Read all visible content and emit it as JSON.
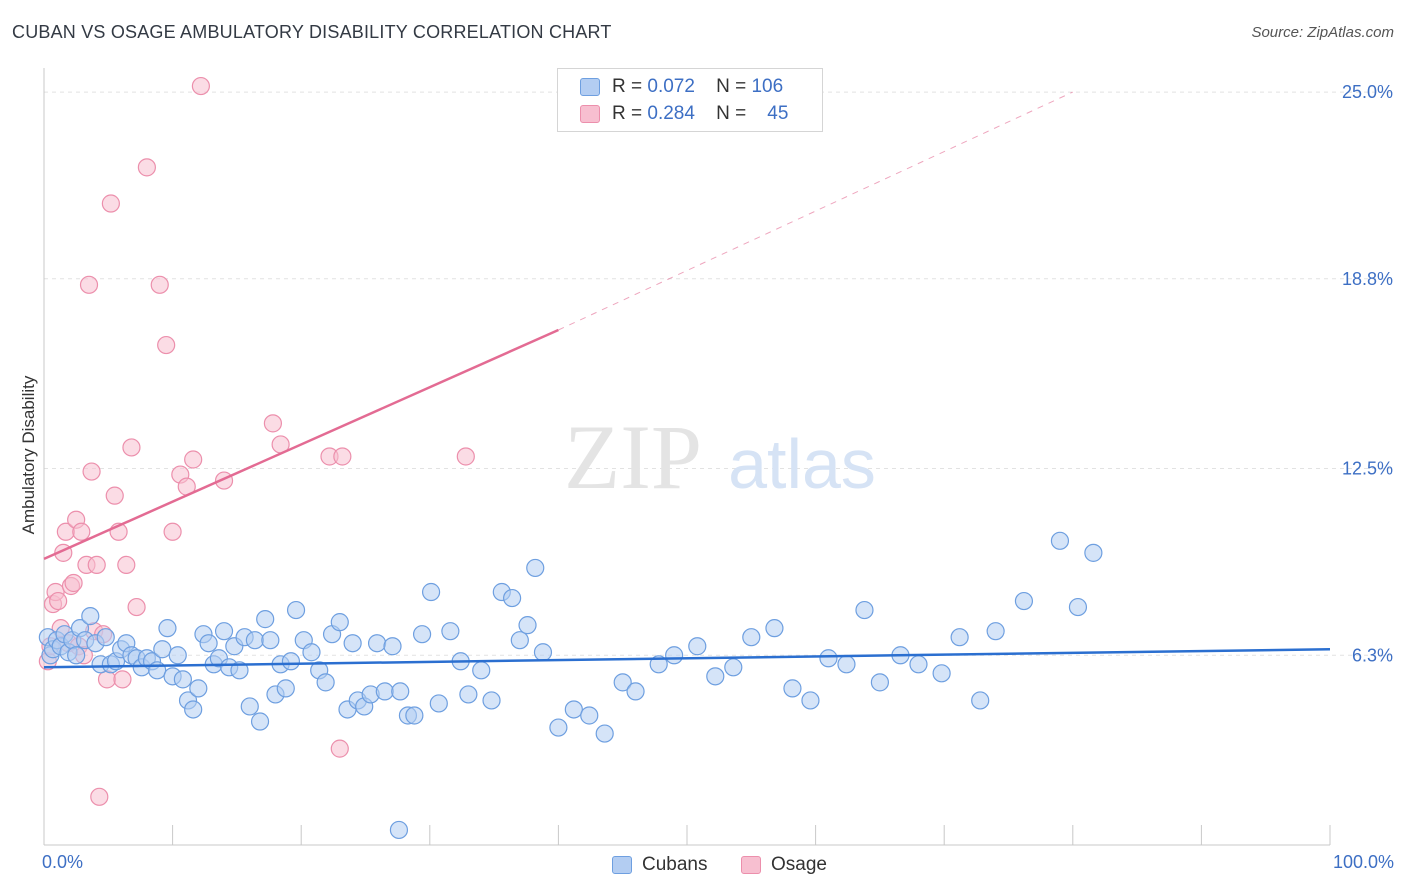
{
  "header": {
    "title": "CUBAN VS OSAGE AMBULATORY DISABILITY CORRELATION CHART",
    "source": "Source: ZipAtlas.com"
  },
  "watermark": {
    "zip": "ZIP",
    "atlas": "atlas"
  },
  "colors": {
    "cubans_fill": "#b3cdf2",
    "cubans_stroke": "#6e9fe0",
    "cubans_line": "#2b6fd0",
    "osage_fill": "#f7bfd0",
    "osage_stroke": "#ec8fac",
    "osage_line": "#e36b93",
    "axis_text": "#3d6fc4"
  },
  "legend": {
    "rows": [
      {
        "r_label": "R =",
        "r_value": "0.072",
        "n_label": "N =",
        "n_value": "106"
      },
      {
        "r_label": "R =",
        "r_value": "0.284",
        "n_label": "N =",
        "n_value": "45"
      }
    ]
  },
  "bottom_legend": {
    "cubans": "Cubans",
    "osage": "Osage"
  },
  "chart_data": {
    "type": "scatter",
    "title": "CUBAN VS OSAGE AMBULATORY DISABILITY CORRELATION CHART",
    "xlabel": "",
    "ylabel": "Ambulatory Disability",
    "xlim": [
      0,
      100
    ],
    "ylim": [
      0,
      25.6
    ],
    "x_tick_labels": [
      "0.0%",
      "100.0%"
    ],
    "y_ticks": [
      6.3,
      12.5,
      18.8,
      25.0
    ],
    "y_tick_labels": [
      "6.3%",
      "12.5%",
      "18.8%",
      "25.0%"
    ],
    "grid": true,
    "legend_placement": "top-center",
    "series": [
      {
        "name": "Cubans",
        "R": 0.072,
        "N": 106,
        "trend": {
          "x": [
            0,
            100
          ],
          "y": [
            5.9,
            6.5
          ]
        },
        "points": [
          [
            0.3,
            6.9
          ],
          [
            0.5,
            6.3
          ],
          [
            0.7,
            6.5
          ],
          [
            1.0,
            6.8
          ],
          [
            1.3,
            6.6
          ],
          [
            1.6,
            7.0
          ],
          [
            1.9,
            6.4
          ],
          [
            2.2,
            6.8
          ],
          [
            2.5,
            6.3
          ],
          [
            2.8,
            7.2
          ],
          [
            3.2,
            6.8
          ],
          [
            3.6,
            7.6
          ],
          [
            4.0,
            6.7
          ],
          [
            4.4,
            6.0
          ],
          [
            4.8,
            6.9
          ],
          [
            5.2,
            6.0
          ],
          [
            5.6,
            6.1
          ],
          [
            6.0,
            6.5
          ],
          [
            6.4,
            6.7
          ],
          [
            6.8,
            6.3
          ],
          [
            7.2,
            6.2
          ],
          [
            7.6,
            5.9
          ],
          [
            8.0,
            6.2
          ],
          [
            8.4,
            6.1
          ],
          [
            8.8,
            5.8
          ],
          [
            9.2,
            6.5
          ],
          [
            9.6,
            7.2
          ],
          [
            10.0,
            5.6
          ],
          [
            10.4,
            6.3
          ],
          [
            10.8,
            5.5
          ],
          [
            11.2,
            4.8
          ],
          [
            11.6,
            4.5
          ],
          [
            12.0,
            5.2
          ],
          [
            12.4,
            7.0
          ],
          [
            12.8,
            6.7
          ],
          [
            13.2,
            6.0
          ],
          [
            13.6,
            6.2
          ],
          [
            14.0,
            7.1
          ],
          [
            14.4,
            5.9
          ],
          [
            14.8,
            6.6
          ],
          [
            15.2,
            5.8
          ],
          [
            15.6,
            6.9
          ],
          [
            16.0,
            4.6
          ],
          [
            16.4,
            6.8
          ],
          [
            16.8,
            4.1
          ],
          [
            17.2,
            7.5
          ],
          [
            17.6,
            6.8
          ],
          [
            18.0,
            5.0
          ],
          [
            18.4,
            6.0
          ],
          [
            18.8,
            5.2
          ],
          [
            19.2,
            6.1
          ],
          [
            19.6,
            7.8
          ],
          [
            20.2,
            6.8
          ],
          [
            20.8,
            6.4
          ],
          [
            21.4,
            5.8
          ],
          [
            21.9,
            5.4
          ],
          [
            22.4,
            7.0
          ],
          [
            23.0,
            7.4
          ],
          [
            23.6,
            4.5
          ],
          [
            24.0,
            6.7
          ],
          [
            24.4,
            4.8
          ],
          [
            24.9,
            4.6
          ],
          [
            25.4,
            5.0
          ],
          [
            25.9,
            6.7
          ],
          [
            26.5,
            5.1
          ],
          [
            27.1,
            6.6
          ],
          [
            27.7,
            5.1
          ],
          [
            28.3,
            4.3
          ],
          [
            28.8,
            4.3
          ],
          [
            29.4,
            7.0
          ],
          [
            30.1,
            8.4
          ],
          [
            30.7,
            4.7
          ],
          [
            31.6,
            7.1
          ],
          [
            32.4,
            6.1
          ],
          [
            33.0,
            5.0
          ],
          [
            34.0,
            5.8
          ],
          [
            34.8,
            4.8
          ],
          [
            35.6,
            8.4
          ],
          [
            36.4,
            8.2
          ],
          [
            37.0,
            6.8
          ],
          [
            37.6,
            7.3
          ],
          [
            38.2,
            9.2
          ],
          [
            38.8,
            6.4
          ],
          [
            40.0,
            3.9
          ],
          [
            41.2,
            4.5
          ],
          [
            42.4,
            4.3
          ],
          [
            43.6,
            3.7
          ],
          [
            45.0,
            5.4
          ],
          [
            46.0,
            5.1
          ],
          [
            47.8,
            6.0
          ],
          [
            49.0,
            6.3
          ],
          [
            50.8,
            6.6
          ],
          [
            52.2,
            5.6
          ],
          [
            53.6,
            5.9
          ],
          [
            55.0,
            6.9
          ],
          [
            56.8,
            7.2
          ],
          [
            58.2,
            5.2
          ],
          [
            59.6,
            4.8
          ],
          [
            61.0,
            6.2
          ],
          [
            62.4,
            6.0
          ],
          [
            63.8,
            7.8
          ],
          [
            65.0,
            5.4
          ],
          [
            66.6,
            6.3
          ],
          [
            68.0,
            6.0
          ],
          [
            69.8,
            5.7
          ],
          [
            71.2,
            6.9
          ],
          [
            72.8,
            4.8
          ],
          [
            74.0,
            7.1
          ],
          [
            76.2,
            8.1
          ],
          [
            79.0,
            10.1
          ],
          [
            80.4,
            7.9
          ],
          [
            81.6,
            9.7
          ],
          [
            27.6,
            0.5
          ]
        ]
      },
      {
        "name": "Osage",
        "R": 0.284,
        "N": 45,
        "trend": {
          "x": [
            0,
            40
          ],
          "y": [
            9.5,
            17.1
          ]
        },
        "trend_extension": {
          "x": [
            40,
            80
          ],
          "y": [
            17.1,
            25.0
          ]
        },
        "points": [
          [
            0.3,
            6.1
          ],
          [
            0.5,
            6.6
          ],
          [
            0.7,
            8.0
          ],
          [
            0.9,
            8.4
          ],
          [
            1.1,
            8.1
          ],
          [
            1.3,
            7.2
          ],
          [
            1.5,
            9.7
          ],
          [
            1.7,
            10.4
          ],
          [
            1.9,
            6.7
          ],
          [
            2.1,
            8.6
          ],
          [
            2.3,
            8.7
          ],
          [
            2.5,
            10.8
          ],
          [
            2.7,
            6.6
          ],
          [
            2.9,
            10.4
          ],
          [
            3.1,
            6.3
          ],
          [
            3.3,
            9.3
          ],
          [
            3.5,
            18.6
          ],
          [
            3.7,
            12.4
          ],
          [
            3.9,
            7.1
          ],
          [
            4.1,
            9.3
          ],
          [
            4.3,
            1.6
          ],
          [
            4.6,
            7.0
          ],
          [
            4.9,
            5.5
          ],
          [
            5.2,
            21.3
          ],
          [
            5.5,
            11.6
          ],
          [
            5.8,
            10.4
          ],
          [
            6.1,
            5.5
          ],
          [
            6.4,
            9.3
          ],
          [
            6.8,
            13.2
          ],
          [
            7.2,
            7.9
          ],
          [
            8.0,
            22.5
          ],
          [
            9.0,
            18.6
          ],
          [
            9.5,
            16.6
          ],
          [
            10.0,
            10.4
          ],
          [
            10.6,
            12.3
          ],
          [
            11.1,
            11.9
          ],
          [
            11.6,
            12.8
          ],
          [
            12.2,
            25.2
          ],
          [
            14.0,
            12.1
          ],
          [
            17.8,
            14.0
          ],
          [
            18.4,
            13.3
          ],
          [
            22.2,
            12.9
          ],
          [
            23.2,
            12.9
          ],
          [
            23.0,
            3.2
          ],
          [
            32.8,
            12.9
          ]
        ]
      }
    ]
  }
}
